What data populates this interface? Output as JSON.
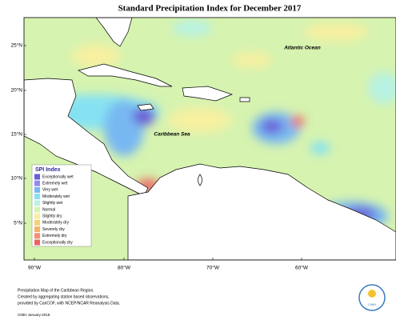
{
  "title": "Standard Precipitation Index for December 2017",
  "map": {
    "lat_labels": [
      "25°N",
      "20°N",
      "15°N",
      "10°N",
      "5°N"
    ],
    "lon_labels": [
      "90°W",
      "80°W",
      "70°W",
      "60°W"
    ],
    "annotations": [
      "Atlantic Ocean",
      "Caribbean Sea"
    ]
  },
  "legend": {
    "title": "SPI Index",
    "items": [
      {
        "label": "Exceptionally wet",
        "color": "#6a5fd8"
      },
      {
        "label": "Extremely wet",
        "color": "#8f8df0"
      },
      {
        "label": "Very wet",
        "color": "#78b8f2"
      },
      {
        "label": "Moderately wet",
        "color": "#86e2f2"
      },
      {
        "label": "Slightly wet",
        "color": "#b8f2e2"
      },
      {
        "label": "Normal",
        "color": "#d6f3b0"
      },
      {
        "label": "Slightly dry",
        "color": "#f6f0a0"
      },
      {
        "label": "Moderately dry",
        "color": "#f6d274"
      },
      {
        "label": "Severely dry",
        "color": "#f6b264"
      },
      {
        "label": "Extremely dry",
        "color": "#f49070"
      },
      {
        "label": "Exceptionally dry",
        "color": "#ee6262"
      }
    ]
  },
  "footer": {
    "lines": [
      "Precipitation Map of the Caribbean Region.",
      "Created by aggregating station based observations,",
      "provided by CariCOF, with NCEP/NCAR Reanalysis Data."
    ],
    "credit": "CIMH January-2018",
    "logo": "CIMH"
  }
}
